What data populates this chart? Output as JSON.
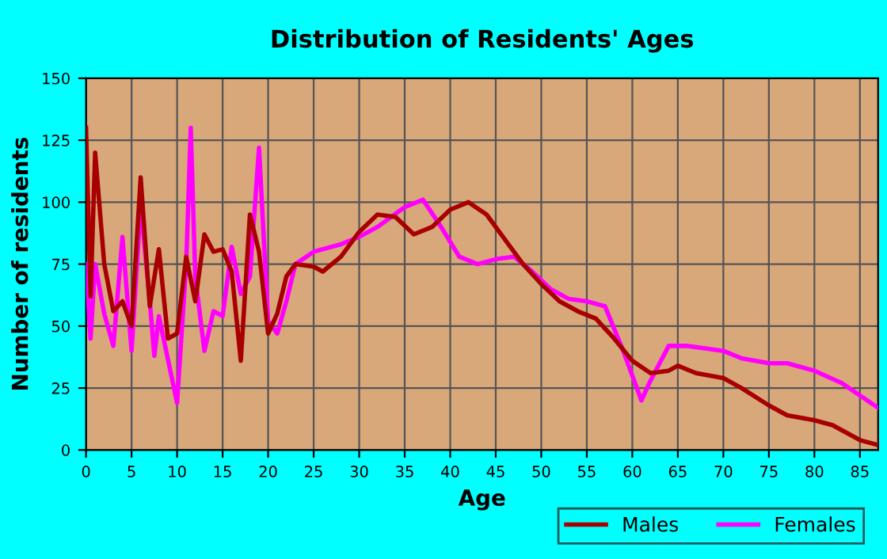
{
  "chart_data": {
    "type": "line",
    "title": "Distribution of Residents' Ages",
    "xlabel": "Age",
    "ylabel": "Number of residents",
    "xlim": [
      0,
      87
    ],
    "ylim": [
      0,
      150
    ],
    "xticks": [
      0,
      5,
      10,
      15,
      20,
      25,
      30,
      35,
      40,
      45,
      50,
      55,
      60,
      65,
      70,
      75,
      80,
      85
    ],
    "yticks": [
      0,
      25,
      50,
      75,
      100,
      125,
      150
    ],
    "grid": true,
    "legend": "bottom right",
    "marker": "none",
    "line_style": "solid",
    "series": [
      {
        "name": "Males",
        "color": "#a80000",
        "x": [
          0,
          0.5,
          1,
          2,
          3,
          4,
          5,
          6,
          7,
          8,
          9,
          10,
          11,
          12,
          13,
          14,
          15,
          16,
          17,
          18,
          19,
          20,
          21,
          22,
          23,
          25,
          26,
          28,
          30,
          32,
          34,
          36,
          38,
          40,
          42,
          44,
          46,
          48,
          50,
          52,
          54,
          56,
          58,
          60,
          62,
          64,
          65,
          67,
          70,
          72,
          75,
          77,
          80,
          82,
          85,
          87
        ],
        "values": [
          130,
          62,
          120,
          75,
          56,
          60,
          50,
          110,
          58,
          81,
          45,
          47,
          78,
          60,
          87,
          80,
          81,
          72,
          36,
          95,
          80,
          47,
          55,
          70,
          75,
          74,
          72,
          78,
          88,
          95,
          94,
          87,
          90,
          97,
          100,
          95,
          85,
          75,
          67,
          60,
          56,
          53,
          45,
          36,
          31,
          32,
          34,
          31,
          29,
          25,
          18,
          14,
          12,
          10,
          4,
          2
        ]
      },
      {
        "name": "Females",
        "color": "#ff00ff",
        "x": [
          0,
          0.5,
          1,
          2,
          3,
          4,
          5,
          6,
          7,
          7.5,
          8,
          10,
          11,
          11.5,
          12,
          13,
          14,
          15,
          16,
          17,
          18,
          19,
          20,
          21,
          22,
          23,
          25,
          28,
          30,
          32,
          35,
          37,
          39,
          41,
          43,
          45,
          47,
          49,
          51,
          53,
          55,
          57,
          59,
          61,
          62,
          64,
          66,
          68,
          70,
          72,
          75,
          77,
          80,
          83,
          87
        ],
        "values": [
          75,
          45,
          75,
          55,
          42,
          86,
          40,
          99,
          60,
          38,
          54,
          19,
          75,
          130,
          70,
          40,
          56,
          54,
          82,
          63,
          70,
          122,
          52,
          47,
          60,
          75,
          80,
          83,
          86,
          90,
          98,
          101,
          90,
          78,
          75,
          77,
          78,
          72,
          65,
          61,
          60,
          58,
          40,
          20,
          28,
          42,
          42,
          41,
          40,
          37,
          35,
          35,
          32,
          27,
          17
        ]
      }
    ]
  }
}
